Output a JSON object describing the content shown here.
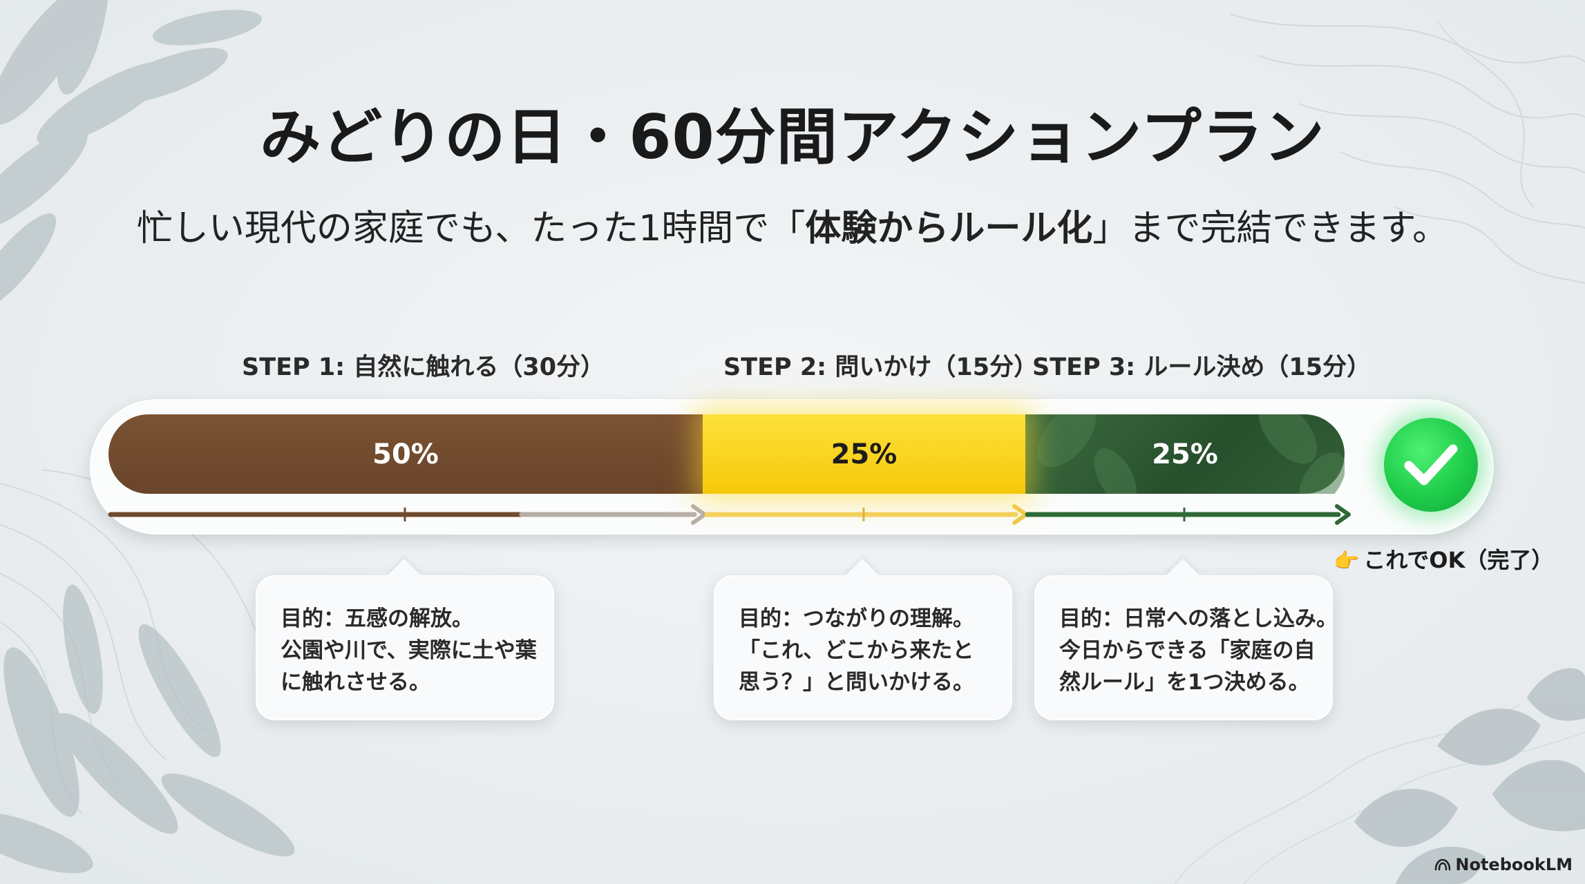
{
  "title": "みどりの日・60分間アクションプラン",
  "subtitle": {
    "before": "忙しい現代の家庭でも、たった1時間で「",
    "emphasis": "体験からルール化",
    "after": "」まで完結できます。"
  },
  "steps": [
    {
      "label": "STEP 1: 自然に触れる（30分）",
      "percent_label": "50%",
      "share": 0.5,
      "color": "#6f482b",
      "description": [
        "目的：五感の解放。",
        "公園や川で、実際に土や葉",
        "に触れさせる。"
      ]
    },
    {
      "label": "STEP 2: 問いかけ（15分）",
      "percent_label": "25%",
      "share": 0.25,
      "color": "#fbd51f",
      "description": [
        "目的：つながりの理解。",
        "「これ、どこから来たと",
        "思う？」と問いかける。"
      ]
    },
    {
      "label": "STEP 3: ルール決め（15分）",
      "percent_label": "25%",
      "share": 0.25,
      "color": "#2f5a33",
      "description": [
        "目的：日常への落とし込み。",
        "今日からできる「家庭の自",
        "然ルール」を1つ決める。"
      ]
    }
  ],
  "completion": {
    "label": "これでOK（完了）",
    "icon": "pointing-hand-icon",
    "check_icon": "check-circle-icon",
    "check_color": "#22cc4d"
  },
  "branding": {
    "name": "NotebookLM",
    "icon": "notebooklm-logo-icon"
  }
}
